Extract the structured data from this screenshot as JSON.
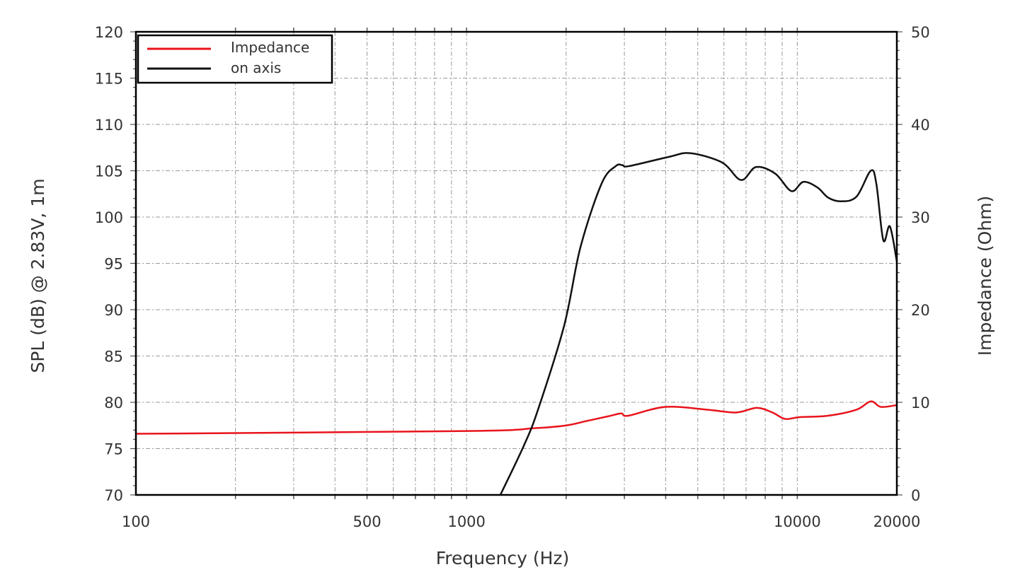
{
  "chart_data": {
    "type": "line",
    "xlabel": "Frequency (Hz)",
    "ylabel": "SPL (dB) @ 2.83V, 1m",
    "y2label": "Impedance (Ohm)",
    "xscale": "log",
    "xlim": [
      100,
      20000
    ],
    "ylim": [
      70,
      120
    ],
    "y2lim": [
      0,
      50
    ],
    "grid": true,
    "legend_position": "top-left",
    "x_ticks": [
      {
        "value": 100,
        "label": "100"
      },
      {
        "value": 500,
        "label": "500"
      },
      {
        "value": 1000,
        "label": "1000"
      },
      {
        "value": 10000,
        "label": "10000"
      },
      {
        "value": 20000,
        "label": "20000"
      }
    ],
    "y_ticks": [
      "70",
      "75",
      "80",
      "85",
      "90",
      "95",
      "100",
      "105",
      "110",
      "115",
      "120"
    ],
    "y2_ticks": [
      "0",
      "10",
      "20",
      "30",
      "40",
      "50"
    ],
    "colors": {
      "impedance": "#e8141c",
      "on_axis": "#111111"
    },
    "series": [
      {
        "name": "Impedance",
        "axis": "right",
        "color": "#e8141c",
        "x": [
          100,
          1000,
          1600,
          2000,
          2320,
          2690,
          2935,
          3080,
          3990,
          5350,
          6540,
          7540,
          8410,
          9200,
          10160,
          12400,
          15100,
          16680,
          17900,
          20000
        ],
        "y": [
          6.6,
          6.9,
          7.2,
          7.5,
          8.0,
          8.5,
          8.8,
          8.55,
          9.5,
          9.2,
          8.9,
          9.4,
          8.9,
          8.2,
          8.4,
          8.55,
          9.2,
          10.1,
          9.5,
          9.7
        ]
      },
      {
        "name": "on axis",
        "axis": "left",
        "color": "#111111",
        "x": [
          1265,
          1489,
          1644,
          1973,
          2208,
          2559,
          2825,
          2960,
          3100,
          4092,
          4742,
          5917,
          6760,
          7500,
          8570,
          9600,
          10430,
          11500,
          12400,
          13540,
          15100,
          16680,
          17340,
          18200,
          19050,
          20000
        ],
        "y": [
          70,
          75.3,
          79.2,
          88.3,
          96.7,
          103.6,
          105.5,
          105.6,
          105.5,
          106.5,
          106.9,
          105.9,
          104.0,
          105.4,
          104.7,
          102.8,
          103.8,
          103.2,
          102.1,
          101.7,
          102.2,
          105.0,
          103.6,
          97.5,
          99.0,
          95.2
        ]
      }
    ]
  }
}
